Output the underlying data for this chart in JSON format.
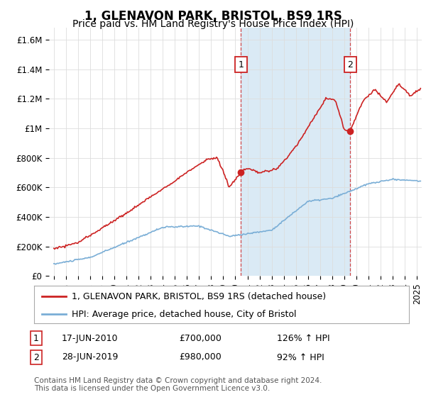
{
  "title": "1, GLENAVON PARK, BRISTOL, BS9 1RS",
  "subtitle": "Price paid vs. HM Land Registry's House Price Index (HPI)",
  "ylabel_ticks": [
    "£0",
    "£200K",
    "£400K",
    "£600K",
    "£800K",
    "£1M",
    "£1.2M",
    "£1.4M",
    "£1.6M"
  ],
  "ytick_values": [
    0,
    200000,
    400000,
    600000,
    800000,
    1000000,
    1200000,
    1400000,
    1600000
  ],
  "ylim": [
    0,
    1680000
  ],
  "xlim_start": 1994.6,
  "xlim_end": 2025.4,
  "sale1_x": 2010.46,
  "sale1_y": 700000,
  "sale2_x": 2019.49,
  "sale2_y": 980000,
  "shade_x_start": 2010.46,
  "shade_x_end": 2019.49,
  "property_color": "#cc2222",
  "hpi_color": "#7aaed6",
  "shade_color": "#daeaf5",
  "legend_label1": "1, GLENAVON PARK, BRISTOL, BS9 1RS (detached house)",
  "legend_label2": "HPI: Average price, detached house, City of Bristol",
  "annotation1_date": "17-JUN-2010",
  "annotation1_price": "£700,000",
  "annotation1_hpi": "126% ↑ HPI",
  "annotation2_date": "28-JUN-2019",
  "annotation2_price": "£980,000",
  "annotation2_hpi": "92% ↑ HPI",
  "footer": "Contains HM Land Registry data © Crown copyright and database right 2024.\nThis data is licensed under the Open Government Licence v3.0.",
  "title_fontsize": 12,
  "subtitle_fontsize": 10,
  "tick_fontsize": 8.5,
  "legend_fontsize": 9,
  "annot_fontsize": 9,
  "footer_fontsize": 7.5,
  "background_color": "#ffffff",
  "grid_color": "#dddddd",
  "spine_color": "#cccccc"
}
